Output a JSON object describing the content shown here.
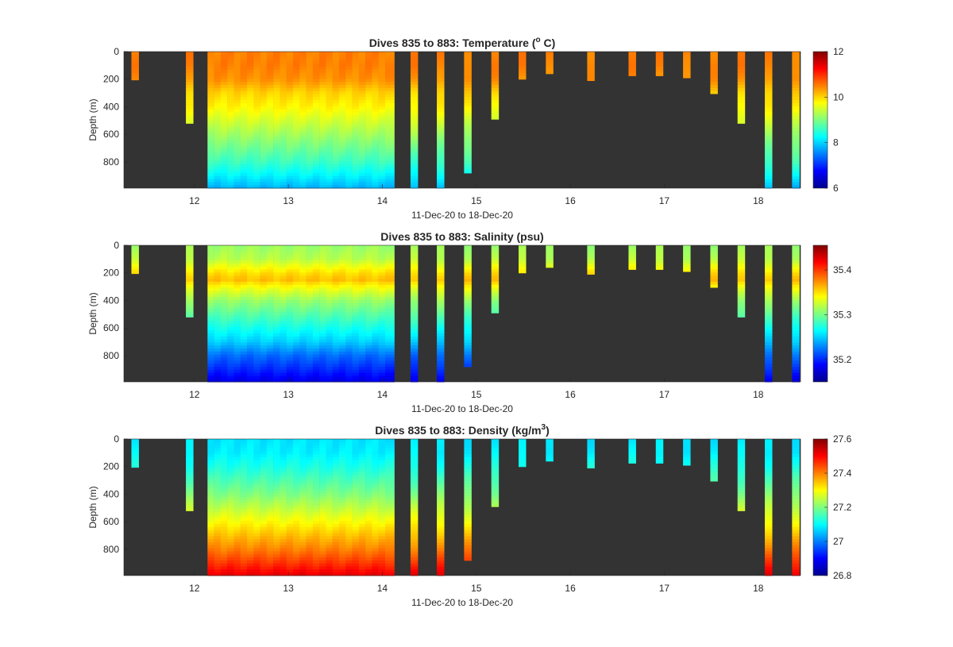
{
  "figure": {
    "background": "#ffffff",
    "no_data_color": "#333333"
  },
  "chart_data": [
    {
      "type": "heatmap",
      "id": "temperature",
      "title": "Dives 835 to 883: Temperature (",
      "title_sup": "o",
      "title_tail": " C)",
      "xlabel": "11-Dec-20 to 18-Dec-20",
      "ylabel": "Depth (m)",
      "xlim": [
        11.25,
        18.45
      ],
      "ylim": [
        0,
        990
      ],
      "y_reversed": true,
      "xticks": [
        12,
        13,
        14,
        15,
        16,
        17,
        18
      ],
      "yticks": [
        0,
        200,
        400,
        600,
        800
      ],
      "colormap": "jet",
      "clim": [
        6,
        12
      ],
      "colorbar_ticks": [
        6,
        8,
        10,
        12
      ],
      "profile_depth_m": [
        0,
        100,
        200,
        300,
        400,
        500,
        600,
        700,
        800,
        900,
        990
      ],
      "profile_values": [
        10.5,
        10.5,
        10.4,
        10.0,
        9.8,
        9.5,
        9.2,
        8.9,
        8.6,
        8.2,
        7.8
      ]
    },
    {
      "type": "heatmap",
      "id": "salinity",
      "title": "Dives 835 to 883: Salinity (psu)",
      "xlabel": "11-Dec-20 to 18-Dec-20",
      "ylabel": "Depth (m)",
      "xlim": [
        11.25,
        18.45
      ],
      "ylim": [
        0,
        990
      ],
      "y_reversed": true,
      "xticks": [
        12,
        13,
        14,
        15,
        16,
        17,
        18
      ],
      "yticks": [
        0,
        200,
        400,
        600,
        800
      ],
      "colormap": "jet",
      "clim": [
        35.15,
        35.455
      ],
      "colorbar_ticks": [
        35.2,
        35.3,
        35.4
      ],
      "profile_depth_m": [
        0,
        100,
        200,
        250,
        300,
        400,
        500,
        600,
        700,
        800,
        900,
        990
      ],
      "profile_values": [
        35.31,
        35.32,
        35.35,
        35.36,
        35.34,
        35.31,
        35.29,
        35.27,
        35.25,
        35.22,
        35.2,
        35.18
      ]
    },
    {
      "type": "heatmap",
      "id": "density",
      "title": "Dives 835 to 883: Density (kg/m",
      "title_sup": "3",
      "title_tail": ")",
      "xlabel": "11-Dec-20 to 18-Dec-20",
      "ylabel": "Depth (m)",
      "xlim": [
        11.25,
        18.45
      ],
      "ylim": [
        0,
        990
      ],
      "y_reversed": true,
      "xticks": [
        12,
        13,
        14,
        15,
        16,
        17,
        18
      ],
      "yticks": [
        0,
        200,
        400,
        600,
        800
      ],
      "colormap": "jet",
      "clim": [
        26.8,
        27.6
      ],
      "colorbar_ticks": [
        26.8,
        27,
        27.2,
        27.4,
        27.6
      ],
      "colorbar_ticklabels": [
        "26.8",
        "27",
        "27.2",
        "27.4",
        "27.6"
      ],
      "profile_depth_m": [
        0,
        100,
        200,
        300,
        400,
        500,
        600,
        700,
        800,
        900,
        990
      ],
      "profile_values": [
        27.08,
        27.09,
        27.12,
        27.16,
        27.2,
        27.25,
        27.3,
        27.35,
        27.4,
        27.46,
        27.52
      ]
    }
  ],
  "dives": {
    "start_day": [
      11.33,
      11.91,
      12.14,
      12.21,
      12.28,
      12.35,
      12.42,
      12.49,
      12.56,
      12.63,
      12.7,
      12.77,
      12.84,
      12.91,
      12.98,
      13.05,
      13.12,
      13.19,
      13.26,
      13.33,
      13.4,
      13.47,
      13.54,
      13.61,
      13.68,
      13.75,
      13.82,
      13.89,
      13.96,
      14.03,
      14.3,
      14.58,
      14.87,
      15.16,
      15.45,
      15.74,
      16.18,
      16.62,
      16.91,
      17.2,
      17.49,
      17.78,
      18.07,
      18.36
    ],
    "max_depth_m": [
      205,
      520,
      990,
      990,
      990,
      990,
      990,
      990,
      990,
      990,
      990,
      990,
      990,
      990,
      990,
      990,
      990,
      990,
      990,
      990,
      990,
      990,
      990,
      990,
      990,
      990,
      990,
      990,
      990,
      990,
      990,
      990,
      880,
      490,
      200,
      160,
      210,
      175,
      175,
      190,
      305,
      520,
      990,
      990
    ]
  }
}
